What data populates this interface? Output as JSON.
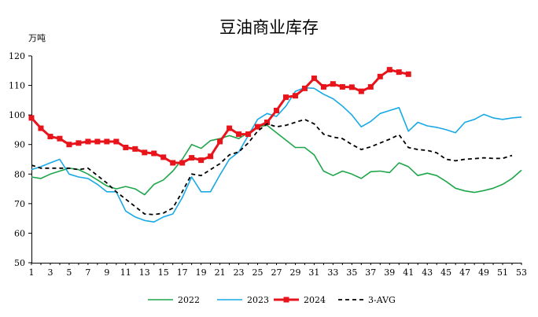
{
  "chart_data": {
    "type": "line",
    "title": "豆油商业库存",
    "ylabel": "万吨",
    "xlabel": "",
    "ylim": [
      50,
      120
    ],
    "yticks": [
      50,
      60,
      70,
      80,
      90,
      100,
      110,
      120
    ],
    "xlim": [
      1,
      53
    ],
    "xticks": [
      1,
      3,
      5,
      7,
      9,
      11,
      13,
      15,
      17,
      19,
      21,
      23,
      25,
      27,
      29,
      31,
      33,
      35,
      37,
      39,
      41,
      43,
      45,
      47,
      49,
      51,
      53
    ],
    "legend_position": "bottom",
    "grid": false,
    "series": [
      {
        "name": "2022",
        "color": "#1fa64a",
        "style": "solid",
        "markers": false,
        "x": [
          1,
          2,
          3,
          4,
          5,
          6,
          7,
          8,
          9,
          10,
          11,
          12,
          13,
          14,
          15,
          16,
          17,
          18,
          19,
          20,
          21,
          22,
          23,
          24,
          25,
          26,
          27,
          28,
          29,
          30,
          31,
          32,
          33,
          34,
          35,
          36,
          37,
          38,
          39,
          40,
          41,
          42,
          43,
          44,
          45,
          46,
          47,
          48,
          49,
          50,
          51,
          52,
          53
        ],
        "values": [
          79,
          78.5,
          80,
          81,
          82,
          81.5,
          80,
          78,
          76,
          75,
          75.8,
          75,
          73,
          76.5,
          78,
          81,
          85,
          90,
          88.7,
          91.3,
          92,
          93,
          92,
          94,
          96,
          96.5,
          94,
          91.5,
          89,
          89,
          86.5,
          81,
          79.5,
          81,
          80,
          78.5,
          80.8,
          81,
          80.5,
          83.8,
          82.5,
          79.5,
          80.3,
          79.5,
          77.5,
          75.2,
          74.3,
          73.8,
          74.4,
          75.2,
          76.5,
          78.5,
          81.3
        ]
      },
      {
        "name": "2023",
        "color": "#19a9e6",
        "style": "solid",
        "markers": false,
        "x": [
          1,
          2,
          3,
          4,
          5,
          6,
          7,
          8,
          9,
          10,
          11,
          12,
          13,
          14,
          15,
          16,
          17,
          18,
          19,
          20,
          21,
          22,
          23,
          24,
          25,
          26,
          27,
          28,
          29,
          30,
          31,
          32,
          33,
          34,
          35,
          36,
          37,
          38,
          39,
          40,
          41,
          42,
          43,
          44,
          45,
          46,
          47,
          48,
          49,
          50,
          51,
          52,
          53
        ],
        "values": [
          81.5,
          82.5,
          83.8,
          85,
          80,
          79,
          78.5,
          76.5,
          74,
          74,
          67.5,
          65.5,
          64.3,
          63.8,
          65.5,
          66.5,
          72,
          79,
          74,
          74,
          79.7,
          85,
          87.5,
          93,
          98.5,
          100.5,
          99.5,
          103,
          108,
          109.2,
          109,
          107,
          105.5,
          103,
          100,
          96,
          97.8,
          100.5,
          101.5,
          102.5,
          94.5,
          97.5,
          96.3,
          95.8,
          95,
          94,
          97.5,
          98.5,
          100.2,
          99,
          98.5,
          99,
          99.3
        ]
      },
      {
        "name": "2024",
        "color": "#e8141b",
        "style": "solid",
        "markers": true,
        "x": [
          1,
          2,
          3,
          4,
          5,
          6,
          7,
          8,
          9,
          10,
          11,
          12,
          13,
          14,
          15,
          16,
          17,
          18,
          19,
          20,
          21,
          22,
          23,
          24,
          25,
          26,
          27,
          28,
          29,
          30,
          31,
          32,
          33,
          34,
          35,
          36,
          37,
          38,
          39,
          40,
          41
        ],
        "values": [
          99,
          95.5,
          92.7,
          92,
          90,
          90.5,
          91,
          91,
          91,
          91,
          89,
          88.5,
          87.3,
          87,
          85.7,
          83.8,
          83.8,
          85.5,
          84.7,
          86,
          91,
          95.5,
          93.5,
          93.5,
          96,
          97.5,
          101.5,
          106,
          106.5,
          109,
          112.4,
          109.5,
          110.5,
          109.5,
          109.4,
          108,
          109.5,
          113,
          115.3,
          114.5,
          113.8
        ]
      },
      {
        "name": "3-AVG",
        "color": "#000000",
        "style": "dashed",
        "markers": false,
        "x": [
          1,
          2,
          3,
          4,
          5,
          6,
          7,
          8,
          9,
          10,
          11,
          12,
          13,
          14,
          15,
          16,
          17,
          18,
          19,
          20,
          21,
          22,
          23,
          24,
          25,
          26,
          27,
          28,
          29,
          30,
          31,
          32,
          33,
          34,
          35,
          36,
          37,
          38,
          39,
          40,
          41,
          42,
          43,
          44,
          45,
          46,
          47,
          48,
          49,
          50,
          51,
          52
        ],
        "values": [
          83,
          82,
          82,
          82,
          82,
          81.5,
          82,
          79.5,
          77,
          74,
          71.5,
          69,
          66.5,
          66.3,
          66.8,
          68.5,
          74,
          80,
          79.5,
          81.5,
          83.5,
          86.5,
          87.5,
          90.5,
          94.5,
          97,
          96,
          96.5,
          97.5,
          98.5,
          97,
          93.5,
          92.5,
          92,
          90,
          88.3,
          89.2,
          90.5,
          91.8,
          93.3,
          89,
          88.3,
          88,
          87.2,
          85,
          84.5,
          85,
          85.2,
          85.5,
          85.3,
          85.3,
          86.3
        ]
      }
    ]
  }
}
